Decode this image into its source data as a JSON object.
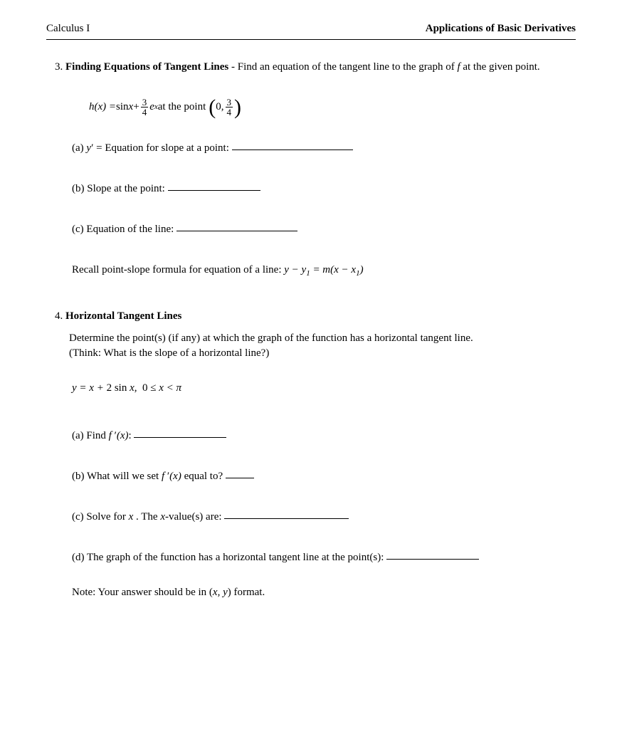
{
  "header": {
    "left": "Calculus I",
    "right": "Applications of Basic Derivatives"
  },
  "problem3": {
    "number": "3.",
    "title": "Finding Equations of Tangent Lines",
    "description": " - Find an equation of the tangent line to the graph of ",
    "description_tail": " at the given point.",
    "func_var": "f",
    "equation": {
      "lhs": "h(x) = ",
      "sin": "sin ",
      "x": "x",
      "plus": " + ",
      "frac_num": "3",
      "frac_den": "4",
      "e": "e",
      "exp": "x",
      "at_point": " at the point ",
      "point_x": "0, ",
      "point_frac_num": "3",
      "point_frac_den": "4"
    },
    "parts": {
      "a_label": "(a) ",
      "a_text1": "y",
      "a_text2": " = Equation for slope at a point: ",
      "b_label": "(b) ",
      "b_text": "Slope at the point: ",
      "c_label": "(c) ",
      "c_text": "Equation of the line: "
    },
    "recall": {
      "text": "Recall point-slope formula for equation of a line: ",
      "formula": "y − y₁ = m(x − x₁)"
    }
  },
  "problem4": {
    "number": "4.",
    "title": "Horizontal Tangent Lines",
    "line1": "Determine the point(s) (if any) at which the graph of the function has a horizontal tangent line.",
    "line2": "(Think: What is the slope of a horizontal line?)",
    "equation": "y = x + 2 sin x,  0 ≤ x < π",
    "parts": {
      "a_label": "(a) ",
      "a_text": "Find ",
      "a_fn": "f ′(x)",
      "a_colon": ": ",
      "b_label": "(b) ",
      "b_text1": "What will we set ",
      "b_fn": "f ′(x)",
      "b_text2": " equal to? ",
      "c_label": "(c) ",
      "c_text1": "Solve for ",
      "c_var": "x",
      "c_text2": ". The ",
      "c_var2": "x",
      "c_text3": "-value(s) are: ",
      "d_label": "(d) ",
      "d_text": "The graph of the function has a horizontal tangent line at the point(s): "
    },
    "note": {
      "text1": "Note: Your answer should be in (",
      "xy": "x, y",
      "text2": ") format."
    }
  },
  "style": {
    "blank_widths": {
      "short": 40,
      "med": 130,
      "long": 170,
      "xlong": 175
    }
  }
}
